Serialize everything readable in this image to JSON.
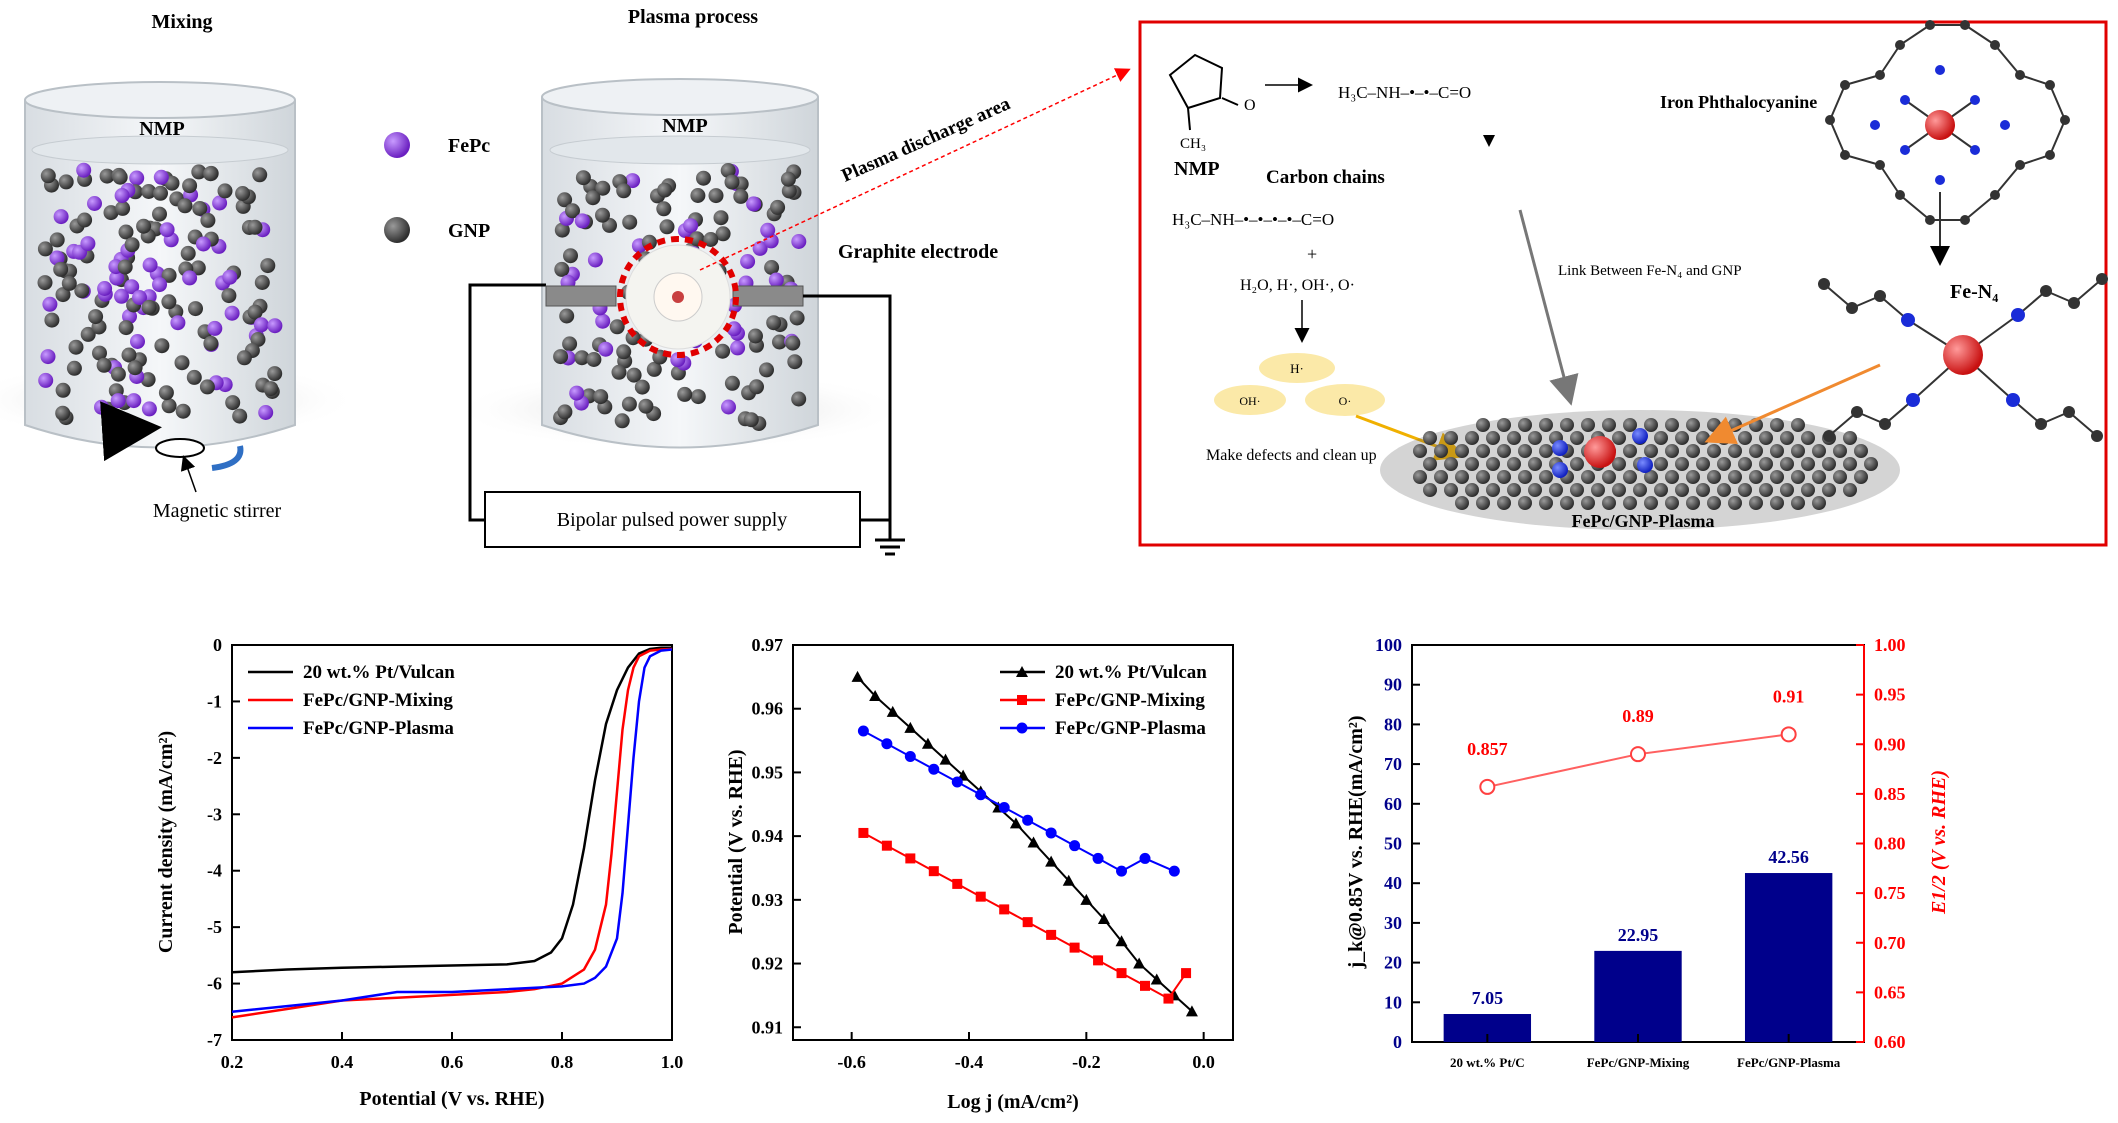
{
  "schematic": {
    "mixing": {
      "title": "Mixing",
      "solvent": "NMP",
      "stirrer": "Magnetic stirrer"
    },
    "legend": {
      "fepc": "FePc",
      "gnp": "GNP"
    },
    "plasma": {
      "title": "Plasma process",
      "solvent": "NMP",
      "electrode": "Graphite electrode",
      "discharge": "Plasma discharge area",
      "power_supply": "Bipolar pulsed power supply"
    },
    "inset": {
      "nmp": "NMP",
      "nmp_ch3": "CH₃",
      "radical_chain": "H₃C–NH–•–•–C=O",
      "carbon_chains": "Carbon chains",
      "long_chain": "H₃C–NH–•–•–•–•–C=O",
      "plus": "+",
      "species": "H₂O, H·, OH·, O·",
      "h_radical": "H·",
      "oh_radical": "OH·",
      "o_radical": "O·",
      "defects": "Make defects and clean up",
      "link": "Link Between Fe-N₄ and GNP",
      "phthalocyanine": "Iron Phthalocyanine",
      "fen4": "Fe-N₄",
      "product": "FePc/GNP-Plasma"
    }
  },
  "colors": {
    "pt": "#000000",
    "mixing": "#ff0000",
    "plasma": "#0000ff",
    "bar": "#00008b",
    "e12": "#ff0000",
    "fepc": "#8a2be2",
    "gnp": "#444444"
  },
  "chart_data": [
    {
      "type": "line",
      "xlabel": "Potential (V vs. RHE)",
      "ylabel": "Current density (mA/cm²)",
      "xlim": [
        0.2,
        1.0
      ],
      "ylim": [
        -7,
        0
      ],
      "xticks": [
        "0.2",
        "0.4",
        "0.6",
        "0.8",
        "1.0"
      ],
      "yticks": [
        "-7",
        "-6",
        "-5",
        "-4",
        "-3",
        "-2",
        "-1",
        "0"
      ],
      "legend_position": "top-left",
      "series": [
        {
          "name": "20 wt.% Pt/Vulcan",
          "color": "#000000",
          "x": [
            0.2,
            0.3,
            0.4,
            0.5,
            0.6,
            0.7,
            0.75,
            0.78,
            0.8,
            0.82,
            0.84,
            0.86,
            0.88,
            0.9,
            0.92,
            0.94,
            0.96,
            0.98,
            1.0
          ],
          "y": [
            -5.8,
            -5.75,
            -5.72,
            -5.7,
            -5.68,
            -5.66,
            -5.6,
            -5.45,
            -5.2,
            -4.6,
            -3.6,
            -2.4,
            -1.4,
            -0.8,
            -0.4,
            -0.15,
            -0.07,
            -0.05,
            -0.05
          ]
        },
        {
          "name": "FePc/GNP-Mixing",
          "color": "#ff0000",
          "x": [
            0.2,
            0.3,
            0.4,
            0.5,
            0.6,
            0.7,
            0.75,
            0.8,
            0.84,
            0.86,
            0.88,
            0.89,
            0.9,
            0.91,
            0.92,
            0.93,
            0.94,
            0.96,
            0.98,
            1.0
          ],
          "y": [
            -6.6,
            -6.45,
            -6.3,
            -6.25,
            -6.2,
            -6.15,
            -6.1,
            -6.0,
            -5.75,
            -5.4,
            -4.6,
            -3.7,
            -2.6,
            -1.5,
            -0.8,
            -0.4,
            -0.2,
            -0.1,
            -0.08,
            -0.07
          ]
        },
        {
          "name": "FePc/GNP-Plasma",
          "color": "#0000ff",
          "x": [
            0.2,
            0.3,
            0.4,
            0.5,
            0.6,
            0.7,
            0.8,
            0.84,
            0.86,
            0.88,
            0.9,
            0.91,
            0.92,
            0.93,
            0.94,
            0.95,
            0.96,
            0.98,
            1.0
          ],
          "y": [
            -6.5,
            -6.4,
            -6.3,
            -6.15,
            -6.15,
            -6.1,
            -6.05,
            -6.0,
            -5.9,
            -5.7,
            -5.2,
            -4.4,
            -3.2,
            -2.0,
            -1.0,
            -0.4,
            -0.2,
            -0.1,
            -0.08
          ]
        }
      ]
    },
    {
      "type": "line",
      "xlabel": "Log j (mA/cm²)",
      "ylabel": "Potential (V vs. RHE)",
      "xlim": [
        -0.7,
        0.05
      ],
      "ylim": [
        0.908,
        0.97
      ],
      "xticks": [
        "-0.6",
        "-0.4",
        "-0.2",
        "0.0"
      ],
      "yticks": [
        "0.91",
        "0.92",
        "0.93",
        "0.94",
        "0.95",
        "0.96",
        "0.97"
      ],
      "legend_position": "top-right",
      "series": [
        {
          "name": "20 wt.% Pt/Vulcan",
          "color": "#000000",
          "marker": "triangle",
          "x": [
            -0.59,
            -0.56,
            -0.53,
            -0.5,
            -0.47,
            -0.44,
            -0.41,
            -0.38,
            -0.35,
            -0.32,
            -0.29,
            -0.26,
            -0.23,
            -0.2,
            -0.17,
            -0.14,
            -0.11,
            -0.08,
            -0.05,
            -0.02
          ],
          "y": [
            0.965,
            0.962,
            0.9595,
            0.957,
            0.9545,
            0.952,
            0.9495,
            0.947,
            0.9445,
            0.942,
            0.939,
            0.936,
            0.933,
            0.93,
            0.927,
            0.9235,
            0.92,
            0.9175,
            0.915,
            0.9125
          ]
        },
        {
          "name": "FePc/GNP-Mixing",
          "color": "#ff0000",
          "marker": "square",
          "x": [
            -0.58,
            -0.54,
            -0.5,
            -0.46,
            -0.42,
            -0.38,
            -0.34,
            -0.3,
            -0.26,
            -0.22,
            -0.18,
            -0.14,
            -0.1,
            -0.06,
            -0.03
          ],
          "y": [
            0.9405,
            0.9385,
            0.9365,
            0.9345,
            0.9325,
            0.9305,
            0.9285,
            0.9265,
            0.9245,
            0.9225,
            0.9205,
            0.9185,
            0.9165,
            0.9145,
            0.9185
          ]
        },
        {
          "name": "FePc/GNP-Plasma",
          "color": "#0000ff",
          "marker": "circle",
          "x": [
            -0.58,
            -0.54,
            -0.5,
            -0.46,
            -0.42,
            -0.38,
            -0.34,
            -0.3,
            -0.26,
            -0.22,
            -0.18,
            -0.14,
            -0.1,
            -0.05
          ],
          "y": [
            0.9565,
            0.9545,
            0.9525,
            0.9505,
            0.9485,
            0.9465,
            0.9445,
            0.9425,
            0.9405,
            0.9385,
            0.9365,
            0.9345,
            0.9365,
            0.9345
          ]
        }
      ]
    },
    {
      "type": "bar",
      "categories": [
        "20 wt.% Pt/C",
        "FePc/GNP-Mixing",
        "FePc/GNP-Plasma"
      ],
      "values": [
        7.05,
        22.95,
        42.56
      ],
      "value_labels": [
        "7.05",
        "22.95",
        "42.56"
      ],
      "ylabel": "j_k@0.85V vs. RHE(mA/cm²)",
      "ylim": [
        0,
        100
      ],
      "yticks": [
        "0",
        "10",
        "20",
        "30",
        "40",
        "50",
        "60",
        "70",
        "80",
        "90",
        "100"
      ],
      "secondary": {
        "type": "line",
        "marker": "open-circle",
        "values": [
          0.857,
          0.89,
          0.91
        ],
        "value_labels": [
          "0.857",
          "0.89",
          "0.91"
        ],
        "ylabel": "E1/2 (V vs. RHE)",
        "ylim": [
          0.6,
          1.0
        ],
        "yticks": [
          "0.60",
          "0.65",
          "0.70",
          "0.75",
          "0.80",
          "0.85",
          "0.90",
          "0.95",
          "1.00"
        ]
      }
    }
  ]
}
